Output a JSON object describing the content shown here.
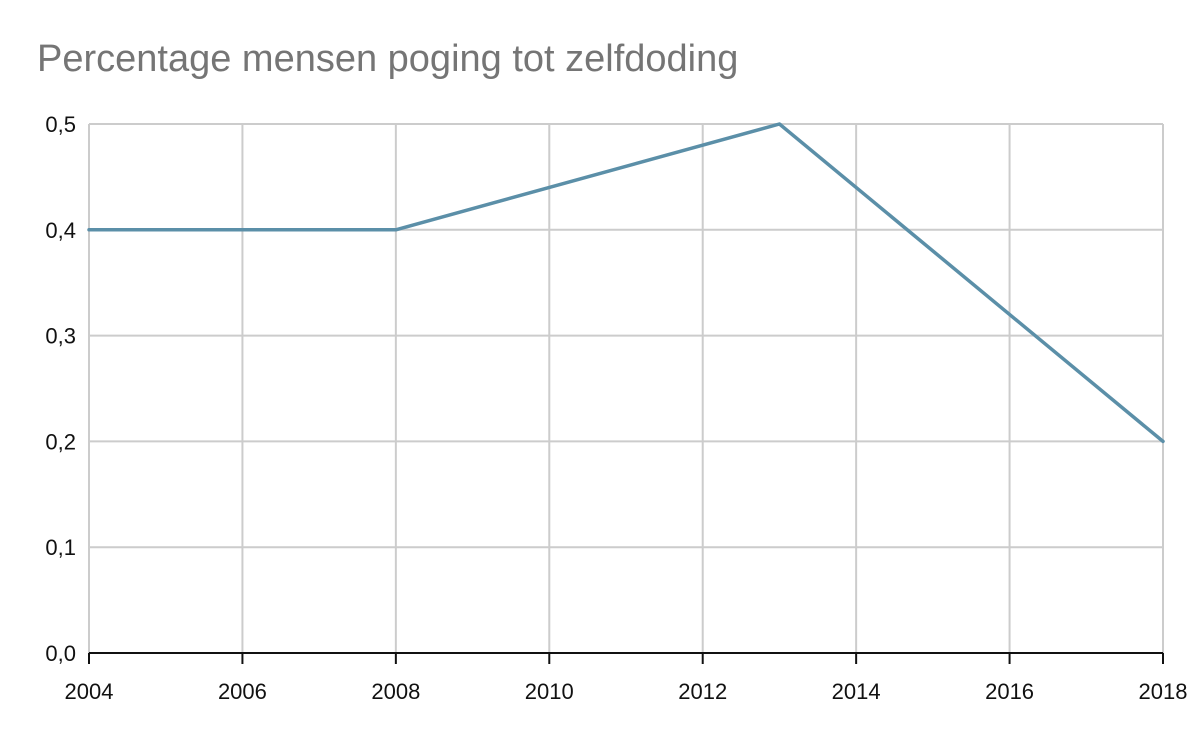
{
  "chart_data": {
    "type": "line",
    "title": "Percentage mensen poging tot zelfdoding",
    "xlabel": "",
    "ylabel": "",
    "x": [
      2004,
      2008,
      2013,
      2018
    ],
    "series": [
      {
        "values": [
          0.4,
          0.4,
          0.5,
          0.2
        ]
      }
    ],
    "xlim": [
      2004,
      2018
    ],
    "ylim": [
      0,
      0.5
    ],
    "x_ticks": [
      "2004",
      "2006",
      "2008",
      "2010",
      "2012",
      "2014",
      "2016",
      "2018"
    ],
    "y_ticks": [
      "0,0",
      "0,1",
      "0,2",
      "0,3",
      "0,4",
      "0,5"
    ],
    "grid": true,
    "legend": "none",
    "line_color": "#5b8fa8"
  }
}
